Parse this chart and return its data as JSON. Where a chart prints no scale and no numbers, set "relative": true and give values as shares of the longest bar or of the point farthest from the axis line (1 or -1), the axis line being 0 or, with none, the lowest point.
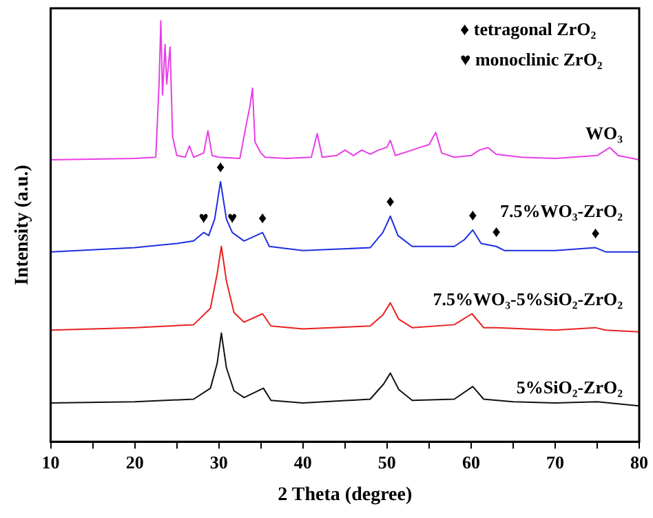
{
  "chart_data": {
    "type": "line",
    "relative": true,
    "xlabel": "2 Theta (degree)",
    "ylabel": "Intensity (a.u.)",
    "xlim": [
      10,
      80
    ],
    "xticks": [
      10,
      {
        "value": 15,
        "label": null
      },
      20,
      {
        "value": 25,
        "label": null
      },
      30,
      {
        "value": 35,
        "label": null
      },
      40,
      {
        "value": 45,
        "label": null
      },
      50,
      {
        "value": 55,
        "label": null
      },
      60,
      {
        "value": 65,
        "label": null
      },
      70,
      {
        "value": 75,
        "label": null
      },
      80
    ],
    "grid": false,
    "legend": false,
    "marker": "none",
    "line_style": "solid",
    "series": [
      {
        "name": "WO₃",
        "color": "#e83de8",
        "x": [
          10,
          20,
          22.5,
          22.9,
          23.1,
          23.3,
          23.6,
          23.8,
          24.2,
          24.5,
          25,
          26,
          26.5,
          27,
          28.2,
          28.7,
          29.2,
          30,
          32.5,
          33.3,
          33.7,
          34,
          34.3,
          35,
          35.5,
          38,
          41,
          41.7,
          42.3,
          44,
          45,
          46,
          47,
          48,
          49,
          50,
          50.4,
          51,
          53,
          54,
          55,
          55.8,
          56.5,
          58,
          60,
          61,
          62,
          63,
          66,
          70,
          75,
          76.5,
          77.5,
          80
        ],
        "values": [
          0.67,
          0.673,
          0.676,
          0.856,
          1.0,
          0.824,
          0.944,
          0.85,
          0.938,
          0.725,
          0.68,
          0.676,
          0.703,
          0.676,
          0.686,
          0.739,
          0.68,
          0.676,
          0.673,
          0.758,
          0.797,
          0.84,
          0.712,
          0.686,
          0.676,
          0.673,
          0.676,
          0.732,
          0.676,
          0.68,
          0.693,
          0.68,
          0.693,
          0.683,
          0.693,
          0.7,
          0.716,
          0.68,
          0.693,
          0.7,
          0.706,
          0.735,
          0.686,
          0.676,
          0.68,
          0.693,
          0.699,
          0.683,
          0.676,
          0.673,
          0.68,
          0.699,
          0.68,
          0.67
        ]
      },
      {
        "name": "7.5%WO₃-ZrO₂",
        "color": "#1c2ee0",
        "x": [
          10,
          20,
          25,
          27,
          28.2,
          28.8,
          29.5,
          30.2,
          30.9,
          31.6,
          33,
          35.2,
          36,
          40,
          48,
          49.5,
          50.4,
          51.3,
          53,
          58,
          59.2,
          60.2,
          61.2,
          63,
          64,
          70,
          74.8,
          76,
          80
        ],
        "values": [
          0.451,
          0.461,
          0.471,
          0.477,
          0.497,
          0.49,
          0.529,
          0.618,
          0.529,
          0.497,
          0.477,
          0.497,
          0.464,
          0.454,
          0.461,
          0.497,
          0.536,
          0.49,
          0.464,
          0.464,
          0.48,
          0.503,
          0.471,
          0.464,
          0.454,
          0.454,
          0.461,
          0.451,
          0.451
        ]
      },
      {
        "name": "7.5%WO₃-5%SiO₂-ZrO₂",
        "color": "#e82020",
        "x": [
          10,
          20,
          27,
          29,
          29.8,
          30.3,
          30.9,
          31.8,
          33,
          35.2,
          36.2,
          40,
          48,
          49.5,
          50.4,
          51.4,
          53,
          58,
          60.1,
          61.5,
          63,
          70,
          74.8,
          76,
          80
        ],
        "values": [
          0.265,
          0.271,
          0.278,
          0.317,
          0.399,
          0.464,
          0.382,
          0.307,
          0.284,
          0.304,
          0.275,
          0.268,
          0.275,
          0.301,
          0.33,
          0.291,
          0.271,
          0.278,
          0.304,
          0.271,
          0.271,
          0.265,
          0.271,
          0.265,
          0.261
        ]
      },
      {
        "name": "5%SiO₂-ZrO₂",
        "color": "#111111",
        "x": [
          10,
          20,
          27,
          29,
          29.8,
          30.3,
          30.9,
          31.8,
          33,
          35.3,
          36.2,
          40,
          48,
          49.6,
          50.4,
          51.4,
          53,
          58,
          60.2,
          61.5,
          65,
          70,
          75,
          80
        ],
        "values": [
          0.092,
          0.095,
          0.101,
          0.127,
          0.186,
          0.258,
          0.176,
          0.121,
          0.105,
          0.127,
          0.098,
          0.092,
          0.101,
          0.137,
          0.163,
          0.124,
          0.098,
          0.101,
          0.131,
          0.101,
          0.095,
          0.092,
          0.095,
          0.085
        ]
      }
    ],
    "annotations": [
      "♦ tetragonal ZrO₂",
      "♥ monoclinic ZrO₂",
      {
        "text": "♦",
        "x": 30.2,
        "y": 0.618
      },
      {
        "text": "♦",
        "x": 35.2,
        "y": 0.497
      },
      {
        "text": "♦",
        "x": 50.4,
        "y": 0.536
      },
      {
        "text": "♦",
        "x": 60.2,
        "y": 0.503
      },
      {
        "text": "♦",
        "x": 63,
        "y": 0.464
      },
      {
        "text": "♦",
        "x": 74.8,
        "y": 0.461
      },
      {
        "text": "♥",
        "x": 28.2,
        "y": 0.497
      },
      {
        "text": "♥",
        "x": 31.6,
        "y": 0.497
      }
    ]
  }
}
